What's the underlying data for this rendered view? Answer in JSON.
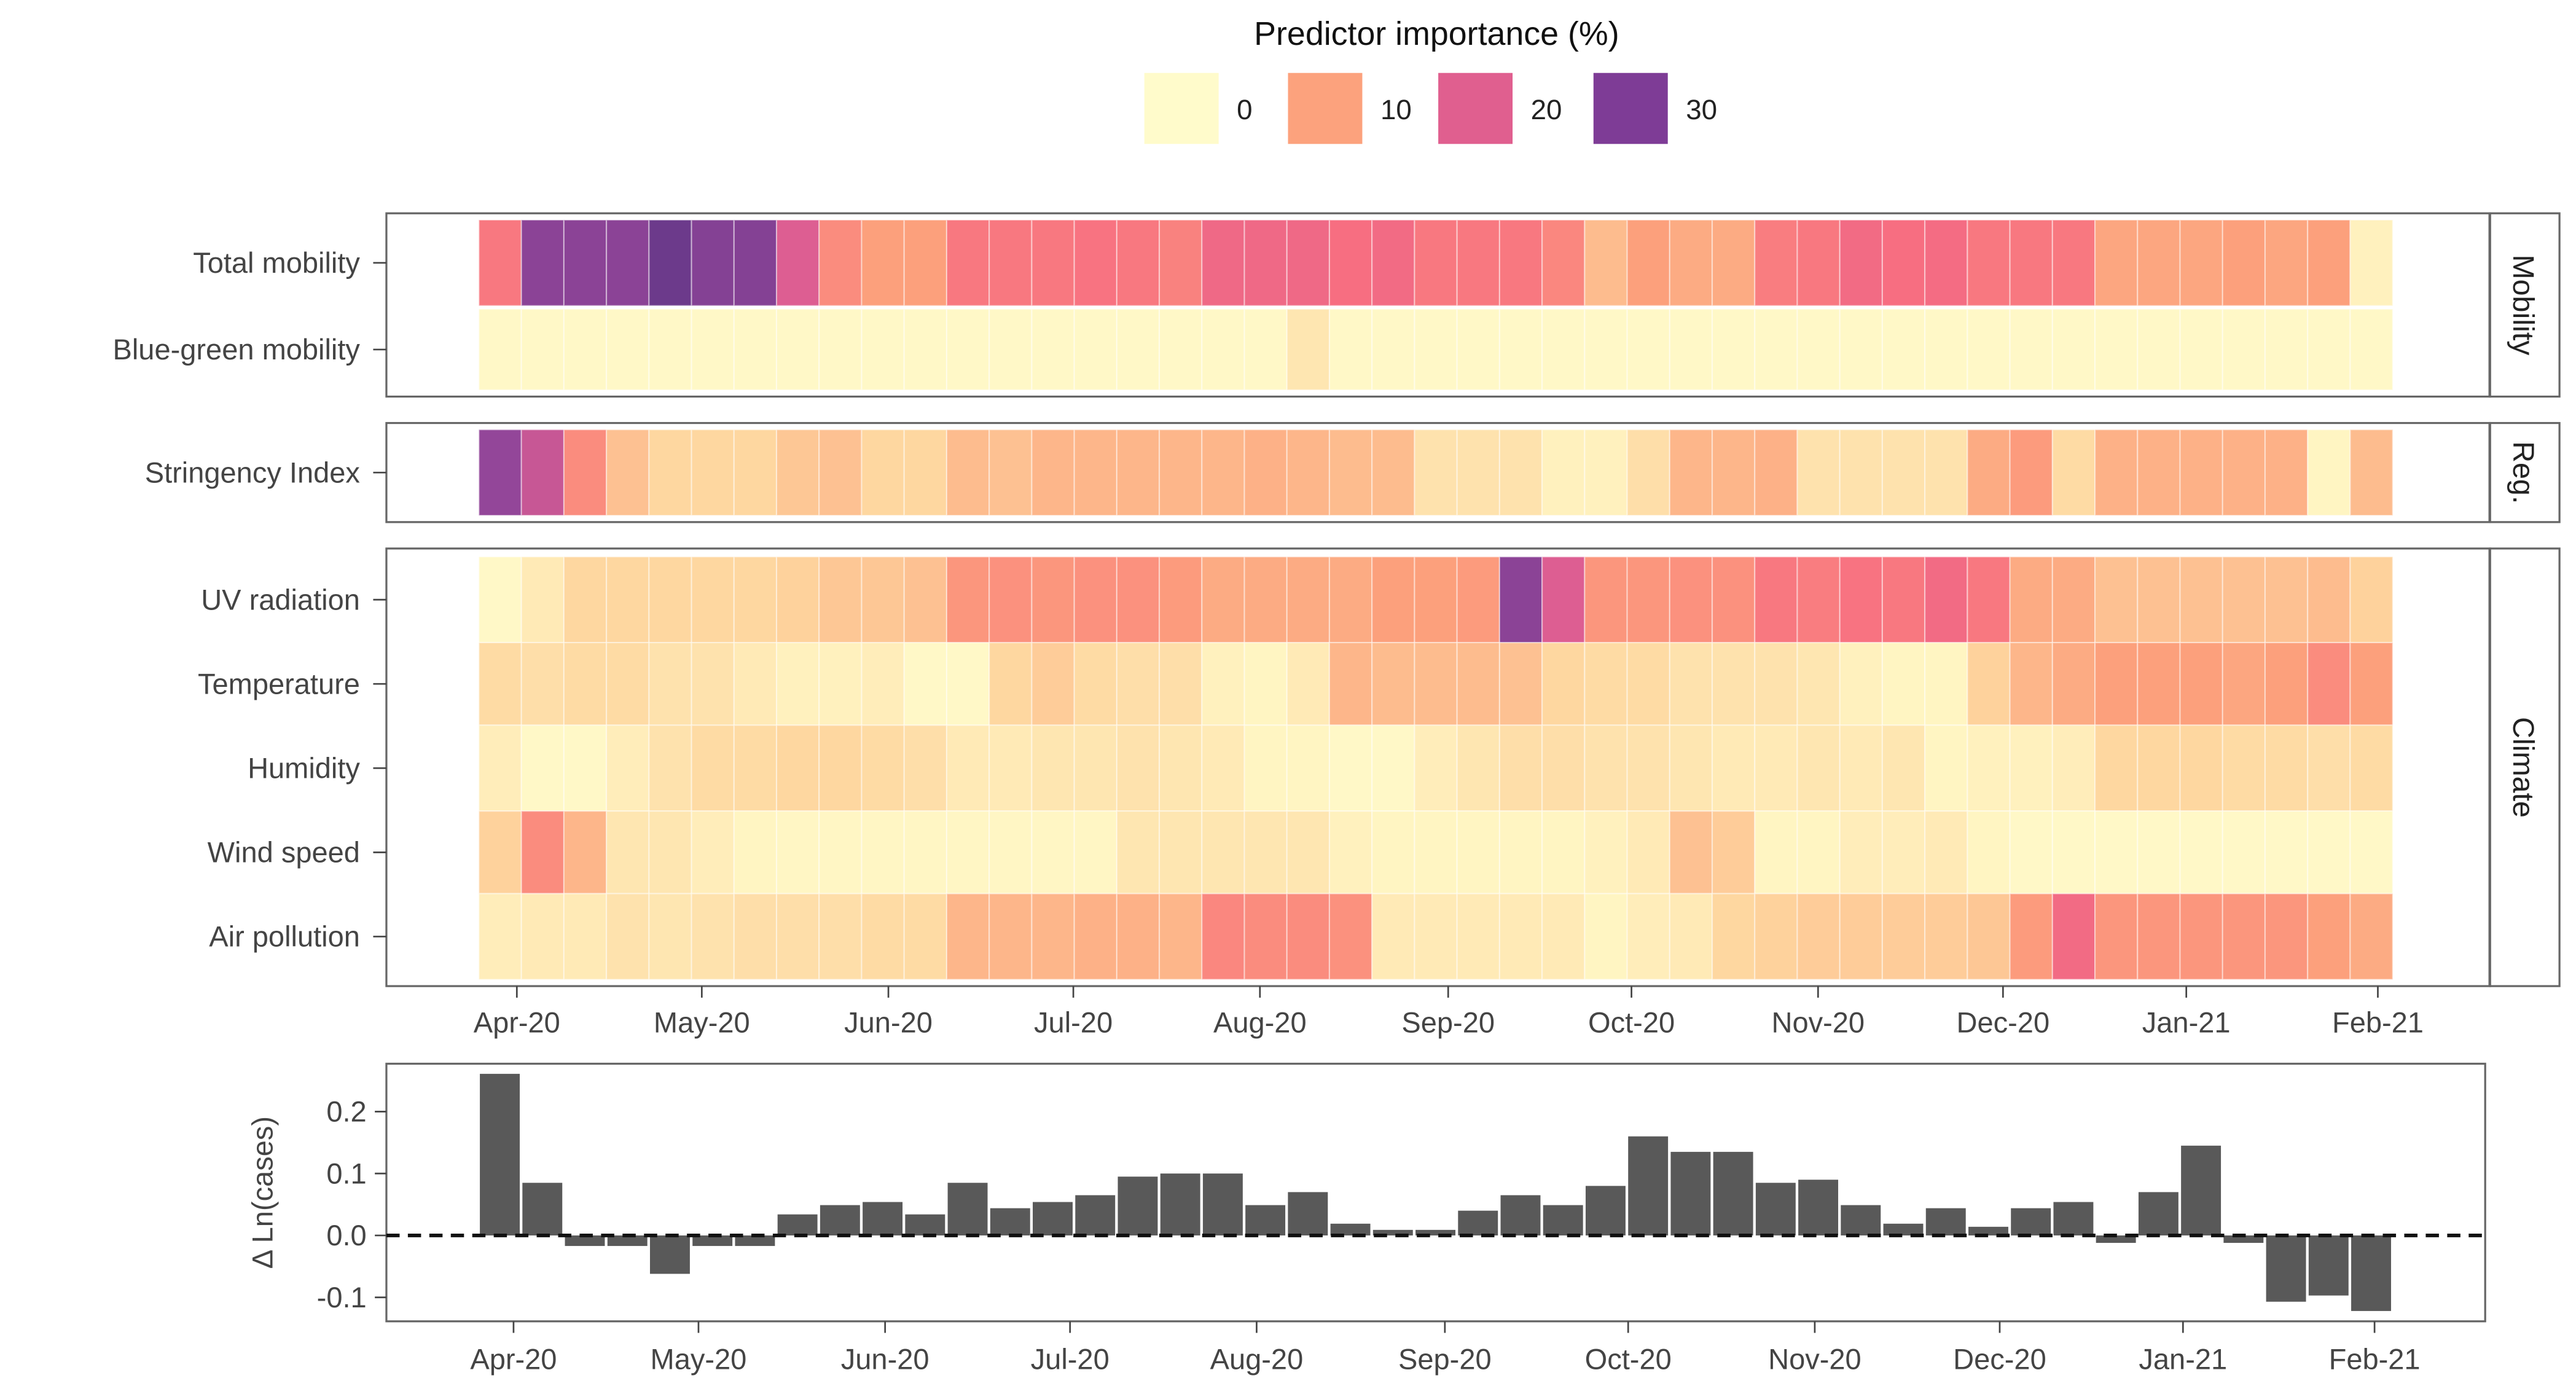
{
  "chart_data": [
    {
      "type": "heatmap",
      "title": "Predictor importance (%)",
      "legend": {
        "position": "top",
        "labels": [
          "0",
          "10",
          "20",
          "30"
        ],
        "values": [
          0,
          10,
          20,
          30
        ],
        "colors": [
          "#FFFBCB",
          "#FCA27D",
          "#E05F8F",
          "#7E3C96"
        ]
      },
      "x_ticks": [
        "Apr-20",
        "May-20",
        "Jun-20",
        "Jul-20",
        "Aug-20",
        "Sep-20",
        "Oct-20",
        "Nov-20",
        "Dec-20",
        "Jan-21",
        "Feb-21"
      ],
      "n_weeks": 45,
      "panels": [
        {
          "strip": "Mobility",
          "rows": [
            {
              "label": "Total mobility",
              "values": [
                14,
                28,
                28,
                28,
                32,
                29,
                29,
                20,
                12,
                10,
                10,
                14,
                14,
                14,
                14.5,
                14,
                13,
                16.5,
                16.5,
                16.5,
                15,
                16,
                14,
                14,
                14,
                12.5,
                7.5,
                10,
                9,
                9,
                13.5,
                14,
                16,
                15,
                15.5,
                14,
                14,
                14,
                9.5,
                9.5,
                9.5,
                10,
                9.5,
                10,
                1.5
              ]
            },
            {
              "label": "Blue-green mobility",
              "values": [
                0.5,
                0.5,
                0.5,
                0.5,
                0.5,
                0.5,
                0.5,
                0.5,
                0.5,
                0.5,
                0.5,
                0.5,
                0.5,
                0.5,
                0.5,
                0.5,
                0.5,
                0.5,
                0.5,
                3,
                0.5,
                0.5,
                0.5,
                0.5,
                0.5,
                0.5,
                0.5,
                0.5,
                0.5,
                0.5,
                0.5,
                0.5,
                0.5,
                0.5,
                0.5,
                0.5,
                0.5,
                0.5,
                0.5,
                0.5,
                0.5,
                0.5,
                0.5,
                0.5,
                0.5
              ]
            }
          ]
        },
        {
          "strip": "Reg.",
          "rows": [
            {
              "label": "Stringency Index",
              "values": [
                27,
                22,
                12,
                7,
                5,
                5,
                5,
                6.5,
                7,
                5,
                5,
                7.5,
                7,
                8,
                8,
                8,
                8,
                8,
                8.5,
                8,
                7.5,
                7.5,
                3.5,
                3.5,
                3.5,
                1.5,
                1.5,
                4,
                8,
                8,
                8.5,
                3.5,
                3.5,
                3.5,
                3.5,
                9,
                10.5,
                4.5,
                8.5,
                8.5,
                8.5,
                8.5,
                8.5,
                1,
                7.5
              ]
            }
          ]
        },
        {
          "strip": "Climate",
          "rows": [
            {
              "label": "UV radiation",
              "values": [
                0.5,
                2.5,
                5,
                5,
                5,
                5,
                5,
                5.5,
                6.5,
                6.5,
                7,
                11,
                11.5,
                11,
                11.5,
                11.5,
                10.5,
                9,
                9,
                9,
                9,
                10,
                10,
                10.5,
                28,
                20,
                11,
                11,
                11.5,
                11.5,
                14,
                13.5,
                14.5,
                14,
                16,
                14,
                9,
                9,
                7,
                7,
                7,
                7,
                7,
                7.5,
                5.5
              ]
            },
            {
              "label": "Temperature",
              "values": [
                4.5,
                4,
                4.5,
                4.5,
                3.5,
                3.5,
                2.5,
                1.5,
                1.5,
                2,
                0.5,
                0.5,
                5,
                6,
                4.5,
                4,
                4,
                1.5,
                1,
                2.5,
                8,
                7.5,
                7.5,
                7.5,
                7,
                5,
                4.5,
                4.5,
                3.5,
                3.5,
                3.5,
                3,
                1.5,
                1,
                1,
                5.5,
                8,
                9,
                10,
                10,
                10,
                9.5,
                10,
                12,
                10
              ]
            },
            {
              "label": "Humidity",
              "values": [
                2,
                0.5,
                0.5,
                2,
                3.5,
                4.5,
                4.5,
                5,
                5,
                4.5,
                4,
                2.5,
                2.5,
                3,
                3,
                3.5,
                3,
                2.5,
                1,
                1,
                0.5,
                0.5,
                2,
                3,
                4,
                4,
                3.5,
                3.5,
                3,
                2.5,
                2.5,
                3,
                2.5,
                3,
                1,
                1.5,
                1.5,
                2,
                5,
                5,
                5,
                4.5,
                4.5,
                4,
                4.5
              ]
            },
            {
              "label": "Wind speed",
              "values": [
                5.5,
                12,
                8,
                3,
                3,
                2,
                1,
                0.8,
                0.8,
                0.8,
                0.8,
                0.8,
                0.8,
                0.8,
                0.8,
                3,
                3,
                3,
                3,
                3,
                1.5,
                1,
                1,
                1,
                1,
                1,
                1.5,
                2.5,
                7,
                6,
                1,
                1,
                2,
                2,
                2.5,
                1,
                0.5,
                0.5,
                0.5,
                0.5,
                0.5,
                0.5,
                0.5,
                0.5,
                0.5
              ]
            },
            {
              "label": "Air pollution",
              "values": [
                2,
                2.5,
                2.5,
                3.5,
                3,
                3.5,
                4,
                4,
                4,
                4.5,
                4.5,
                8,
                8,
                8,
                8.5,
                8.5,
                8,
                12.5,
                12,
                12,
                11.5,
                2.5,
                2.5,
                2.5,
                2.5,
                2.5,
                1,
                2,
                2.5,
                5,
                5.5,
                6,
                6,
                6,
                6,
                6.5,
                10.5,
                16,
                11,
                11,
                11,
                11,
                11,
                10,
                9
              ]
            }
          ]
        }
      ]
    },
    {
      "type": "bar",
      "ylabel": "Δ Ln(cases)",
      "ylim": [
        -0.13,
        0.28
      ],
      "y_ticks": [
        "0.2",
        "0.1",
        "0.0",
        "-0.1"
      ],
      "y_tick_values": [
        0.2,
        0.1,
        0.0,
        -0.1
      ],
      "reference_line": {
        "y": 0,
        "style": "dashed"
      },
      "x_ticks": [
        "Apr-20",
        "May-20",
        "Jun-20",
        "Jul-20",
        "Aug-20",
        "Sep-20",
        "Oct-20",
        "Nov-20",
        "Dec-20",
        "Jan-21",
        "Feb-21"
      ],
      "values": [
        0.261,
        0.085,
        -0.017,
        -0.017,
        -0.062,
        -0.017,
        -0.017,
        0.034,
        0.049,
        0.054,
        0.034,
        0.085,
        0.044,
        0.054,
        0.065,
        0.095,
        0.1,
        0.1,
        0.049,
        0.07,
        0.019,
        0.009,
        0.009,
        0.04,
        0.065,
        0.049,
        0.08,
        0.16,
        0.135,
        0.135,
        0.085,
        0.09,
        0.049,
        0.019,
        0.044,
        0.014,
        0.044,
        0.054,
        -0.012,
        0.07,
        0.145,
        -0.012,
        -0.107,
        -0.097,
        -0.122
      ],
      "bar_color": "#595959"
    }
  ]
}
